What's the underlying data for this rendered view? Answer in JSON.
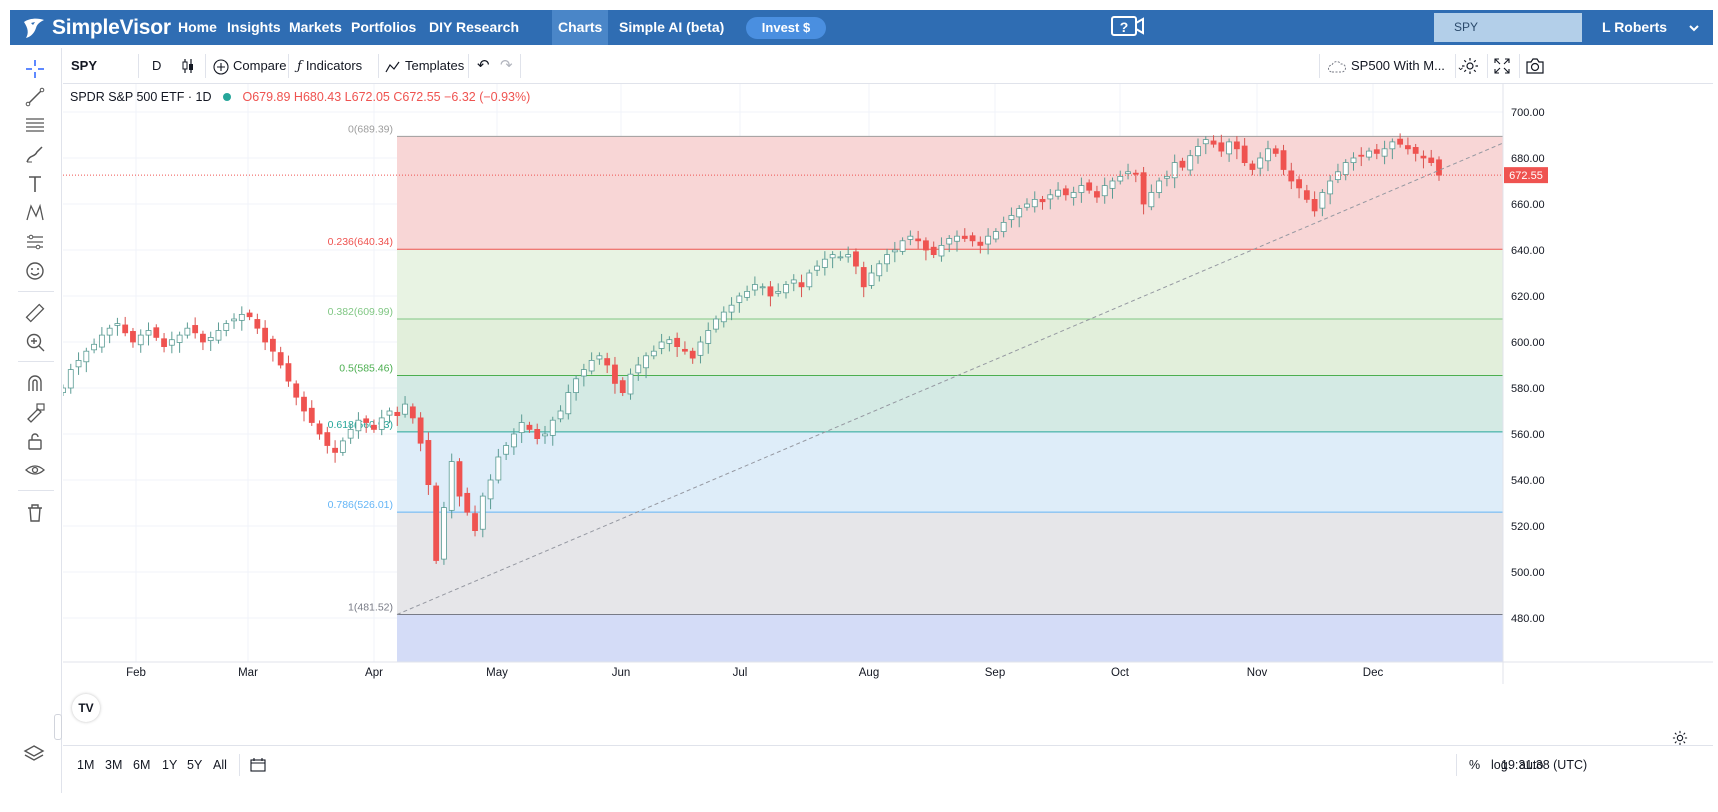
{
  "nav": {
    "brand": "SimpleVisor",
    "items": [
      "Home",
      "Insights",
      "Markets",
      "Portfolios",
      "DIY Research",
      "Charts",
      "Simple AI (beta)"
    ],
    "active": "Charts",
    "invest_label": "Invest $",
    "search_value": "SPY",
    "user": "L Roberts"
  },
  "toolbar": {
    "symbol": "SPY",
    "interval": "D",
    "compare": "Compare",
    "indicators": "Indicators",
    "templates": "Templates",
    "layout_name": "SP500 With M..."
  },
  "legend": {
    "name": "SPDR S&P 500 ETF · 1D",
    "open": "O679.89",
    "high": "H680.43",
    "low": "L672.05",
    "close": "C672.55",
    "change": "−6.32 (−0.93%)"
  },
  "price_axis": {
    "ticks": [
      "700.00",
      "680.00",
      "660.00",
      "640.00",
      "620.00",
      "600.00",
      "580.00",
      "560.00",
      "540.00",
      "520.00",
      "500.00",
      "480.00"
    ],
    "last_price": "672.55",
    "last_value": 672.55
  },
  "time_axis": {
    "months": [
      "Feb",
      "Mar",
      "Apr",
      "May",
      "Jun",
      "Jul",
      "Aug",
      "Sep",
      "Oct",
      "Nov",
      "Dec"
    ]
  },
  "fib_levels": [
    {
      "label": "0(689.39)",
      "value": 689.39,
      "line": "#9e9e9e",
      "fill": "#f8d6d6"
    },
    {
      "label": "0.236(640.34)",
      "value": 640.34,
      "line": "#ef5350",
      "fill": "#e8f3e3"
    },
    {
      "label": "0.382(609.99)",
      "value": 609.99,
      "line": "#81c784",
      "fill": "#e2efdb"
    },
    {
      "label": "0.5(585.46)",
      "value": 585.46,
      "line": "#4caf50",
      "fill": "#d4eae4"
    },
    {
      "label": "0.618(560.93)",
      "value": 560.93,
      "line": "#26a69a",
      "fill": "#deedf9"
    },
    {
      "label": "0.786(526.01)",
      "value": 526.01,
      "line": "#64b5f6",
      "fill": "#e6e6e9"
    },
    {
      "label": "1(481.52)",
      "value": 481.52,
      "line": "#787b86",
      "fill": "#d4dcf7"
    }
  ],
  "trend_line": {
    "start": 481.52,
    "end": 686.5
  },
  "chart_data": {
    "type": "candlestick",
    "symbol": "SPY",
    "y_range": [
      460,
      705
    ],
    "series": [
      {
        "name": "SPY",
        "close": [
          580,
          588,
          592,
          596,
          599,
          603,
          606,
          608,
          604,
          600,
          603,
          605,
          602,
          598,
          601,
          603,
          606,
          604,
          600,
          602,
          605,
          608,
          610,
          612,
          611,
          606,
          600,
          596,
          590,
          583,
          576,
          570,
          565,
          560,
          555,
          552,
          557,
          562,
          566,
          565,
          562,
          567,
          570,
          568,
          573,
          567,
          556,
          538,
          505,
          528,
          548,
          533,
          526,
          518,
          533,
          540,
          550,
          555,
          560,
          565,
          562,
          558,
          560,
          566,
          570,
          578,
          584,
          588,
          592,
          594,
          590,
          582,
          578,
          586,
          590,
          594,
          596,
          600,
          601,
          598,
          596,
          593,
          600,
          605,
          610,
          613,
          616,
          620,
          622,
          625,
          624,
          620,
          622,
          625,
          627,
          624,
          630,
          633,
          636,
          638,
          637,
          638,
          633,
          624,
          630,
          634,
          638,
          640,
          644,
          646,
          644,
          640,
          638,
          642,
          645,
          646,
          645,
          644,
          642,
          646,
          648,
          652,
          655,
          658,
          660,
          662,
          661,
          664,
          666,
          664,
          665,
          668,
          666,
          663,
          668,
          670,
          672,
          674,
          673,
          660,
          665,
          670,
          672,
          678,
          676,
          681,
          685,
          688,
          686,
          683,
          687,
          684,
          678,
          675,
          680,
          684,
          682,
          675,
          670,
          667,
          662,
          657,
          665,
          670,
          674,
          678,
          680,
          681,
          683,
          682,
          684,
          687,
          686,
          684,
          682,
          680,
          678,
          672.55
        ]
      }
    ]
  }
}
